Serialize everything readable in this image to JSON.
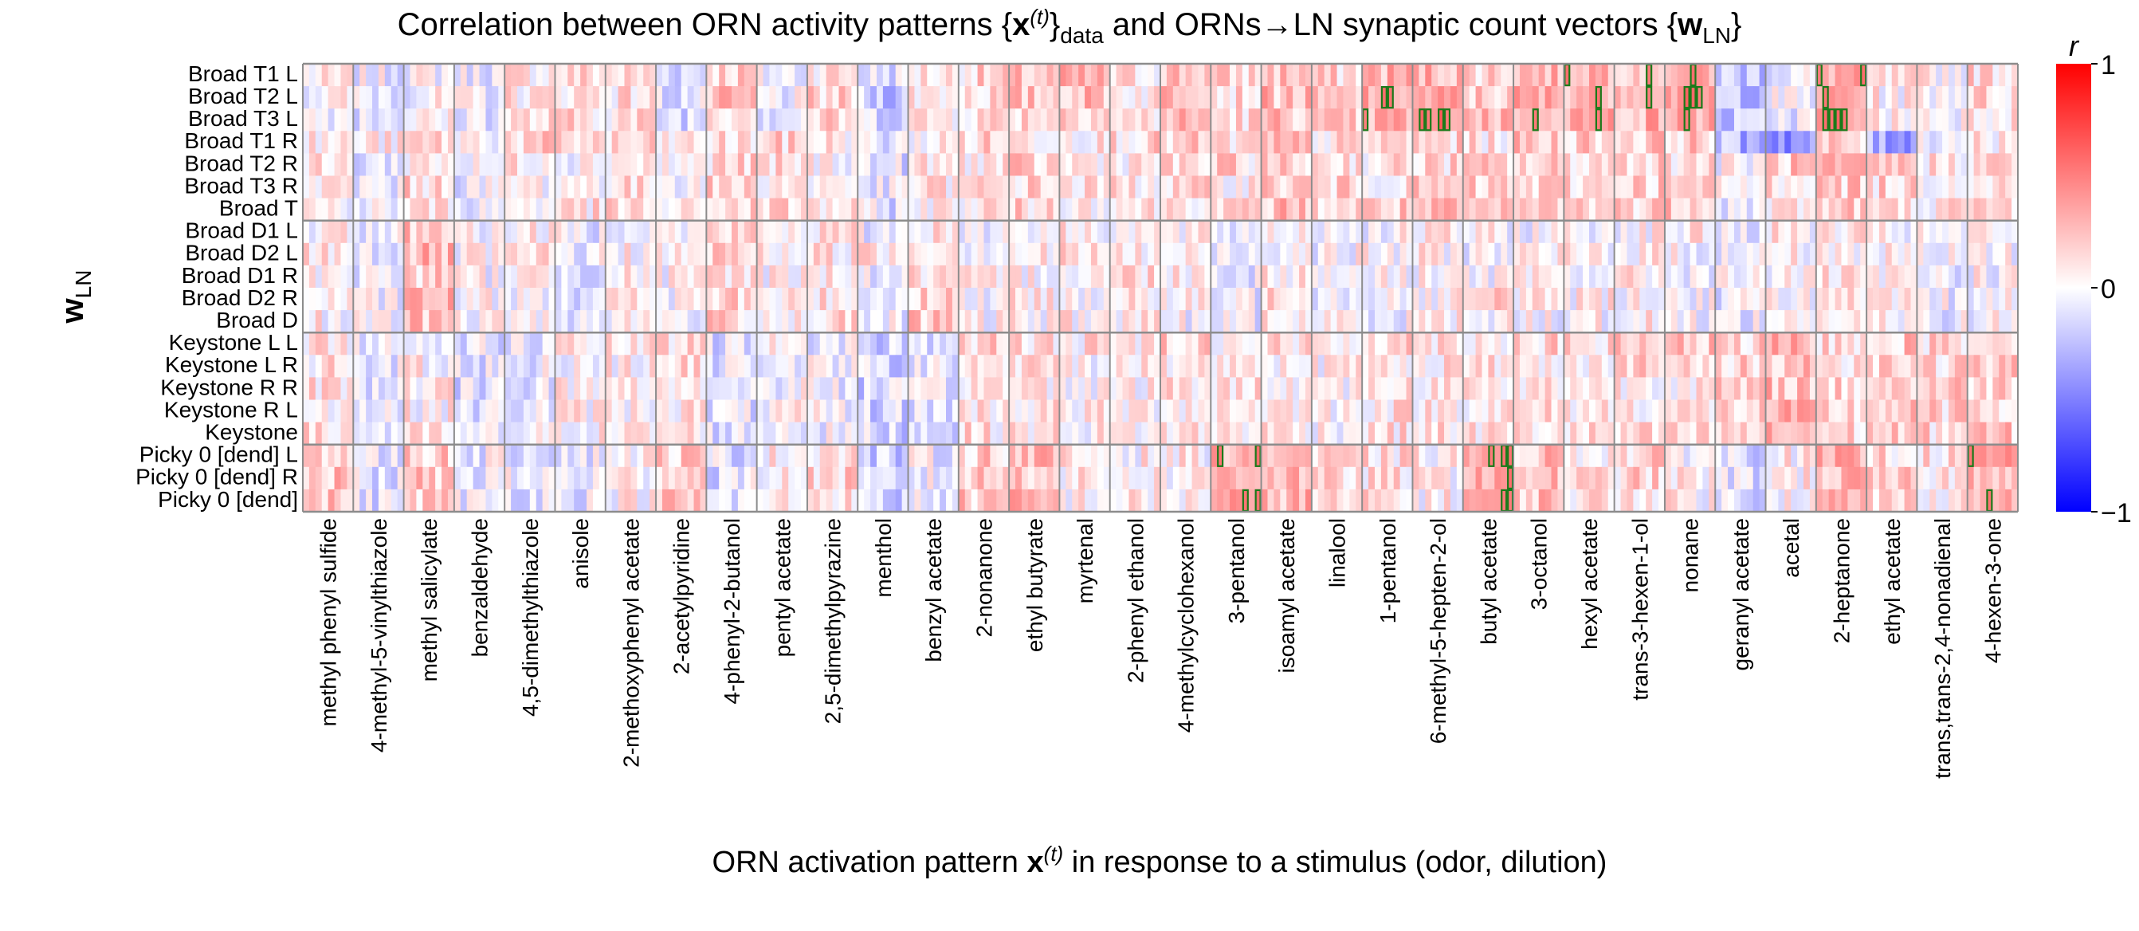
{
  "title_parts": {
    "lead": "Correlation between ORN activity patterns {",
    "x": "x",
    "sup": "(t)",
    "sub": "data",
    "mid": " and ORNs→LN synaptic count vectors {",
    "w": "w",
    "wsub": "LN",
    "tail": "}"
  },
  "ylabel": {
    "main": "w",
    "sub": "LN"
  },
  "xlabel": {
    "lead": "ORN activation pattern ",
    "x": "x",
    "sup": "(t)",
    "tail": " in response to a stimulus (odor, dilution)"
  },
  "colorbar": {
    "label": "r",
    "ticks": [
      "1",
      "0",
      "−1"
    ]
  },
  "chart_data": {
    "type": "heatmap",
    "colormap": "bwr",
    "vmin": -1,
    "vmax": 1,
    "dilutions_per_odor": 8,
    "rows": [
      "Broad T1 L",
      "Broad T2 L",
      "Broad T3 L",
      "Broad T1 R",
      "Broad T2 R",
      "Broad T3 R",
      "Broad T",
      "Broad D1 L",
      "Broad D2 L",
      "Broad D1 R",
      "Broad D2 R",
      "Broad D",
      "Keystone L L",
      "Keystone L R",
      "Keystone R R",
      "Keystone R L",
      "Keystone",
      "Picky 0 [dend] L",
      "Picky 0 [dend] R",
      "Picky 0 [dend]"
    ],
    "row_groups": [
      {
        "name": "Broad",
        "count": 7
      },
      {
        "name": "Broad D",
        "count": 5
      },
      {
        "name": "Keystone",
        "count": 5
      },
      {
        "name": "Picky 0",
        "count": 3
      }
    ],
    "odors": [
      "methyl phenyl sulfide",
      "4-methyl-5-vinylthiazole",
      "methyl salicylate",
      "benzaldehyde",
      "4,5-dimethylthiazole",
      "anisole",
      "2-methoxyphenyl acetate",
      "2-acetylpyridine",
      "4-phenyl-2-butanol",
      "pentyl acetate",
      "2,5-dimethylpyrazine",
      "menthol",
      "benzyl acetate",
      "2-nonanone",
      "ethyl butyrate",
      "myrtenal",
      "2-phenyl ethanol",
      "4-methylcyclohexanol",
      "3-pentanol",
      "isoamyl acetate",
      "linalool",
      "1-pentanol",
      "6-methyl-5-hepten-2-ol",
      "butyl acetate",
      "3-octanol",
      "hexyl acetate",
      "trans-3-hexen-1-ol",
      "nonane",
      "geranyl acetate",
      "acetal",
      "2-heptanone",
      "ethyl acetate",
      "trans,trans-2,4-nonadienal",
      "4-hexen-3-one"
    ],
    "odor_row_bias": [
      [
        0.02,
        -0.05,
        0.0,
        -0.04,
        0.1,
        0.14,
        0.12,
        -0.1,
        0.2,
        -0.05,
        0.14,
        -0.1,
        0.1,
        0.15,
        0.2,
        0.25,
        0.1,
        0.25,
        0.15,
        0.25,
        0.15,
        0.3,
        0.3,
        0.2,
        0.3,
        0.35,
        0.3,
        0.35,
        -0.2,
        -0.05,
        0.35,
        0.05,
        0.05,
        0.15
      ],
      [
        0.02,
        -0.05,
        0.0,
        -0.04,
        0.1,
        0.14,
        0.12,
        -0.1,
        0.2,
        -0.05,
        0.14,
        -0.2,
        0.1,
        0.15,
        0.2,
        0.25,
        0.1,
        0.35,
        0.15,
        0.25,
        0.15,
        0.35,
        0.3,
        0.2,
        0.3,
        0.35,
        0.4,
        0.4,
        -0.2,
        -0.05,
        0.35,
        0.05,
        0.05,
        0.15
      ],
      [
        0.02,
        -0.05,
        0.0,
        -0.04,
        0.1,
        0.14,
        0.12,
        -0.1,
        0.2,
        -0.05,
        0.14,
        -0.1,
        0.1,
        0.15,
        0.2,
        0.25,
        0.1,
        0.25,
        0.15,
        0.25,
        0.15,
        0.3,
        0.45,
        0.3,
        0.35,
        0.35,
        0.3,
        0.35,
        -0.25,
        -0.05,
        0.45,
        0.05,
        0.05,
        0.15
      ],
      [
        0.05,
        0.05,
        0.15,
        0.05,
        0.15,
        0.15,
        0.1,
        0.05,
        0.1,
        0.15,
        0.1,
        -0.1,
        0.05,
        0.15,
        0.1,
        0.1,
        0.15,
        0.15,
        0.1,
        0.2,
        0.1,
        0.15,
        0.15,
        0.1,
        0.2,
        0.2,
        0.2,
        0.2,
        -0.3,
        -0.4,
        0.15,
        -0.35,
        0.0,
        0.1
      ],
      [
        0.05,
        -0.1,
        0.1,
        -0.05,
        0.1,
        0.05,
        0.1,
        0.0,
        0.15,
        0.1,
        0.05,
        -0.1,
        0.05,
        0.1,
        0.15,
        0.1,
        0.1,
        0.1,
        0.15,
        0.15,
        0.15,
        0.1,
        0.15,
        0.15,
        0.15,
        0.15,
        0.2,
        0.15,
        0.0,
        0.2,
        0.2,
        0.2,
        0.1,
        0.15
      ],
      [
        0.05,
        -0.05,
        0.15,
        -0.05,
        0.05,
        0.05,
        0.1,
        0.05,
        0.15,
        0.1,
        0.05,
        -0.1,
        0.1,
        0.1,
        0.15,
        0.1,
        0.1,
        0.1,
        0.1,
        0.2,
        0.15,
        0.1,
        0.15,
        0.15,
        0.15,
        0.15,
        0.2,
        0.15,
        0.0,
        0.15,
        0.2,
        0.15,
        0.1,
        0.15
      ],
      [
        0.05,
        -0.05,
        0.1,
        -0.05,
        0.05,
        0.1,
        0.1,
        0.0,
        0.15,
        0.15,
        0.1,
        -0.1,
        0.05,
        0.1,
        0.15,
        0.1,
        0.1,
        0.15,
        0.1,
        0.25,
        0.15,
        0.2,
        0.2,
        0.15,
        0.2,
        0.2,
        0.2,
        0.25,
        -0.05,
        0.1,
        0.2,
        0.1,
        0.1,
        0.15
      ],
      [
        0.05,
        -0.05,
        0.25,
        0.0,
        0.05,
        -0.05,
        0.05,
        0.0,
        0.15,
        0.05,
        0.1,
        -0.05,
        0.1,
        0.0,
        0.05,
        0.05,
        0.05,
        0.0,
        -0.05,
        0.05,
        0.0,
        0.0,
        0.05,
        0.0,
        0.0,
        0.0,
        0.05,
        0.05,
        -0.05,
        0.05,
        0.05,
        0.0,
        -0.05,
        0.0
      ],
      [
        0.1,
        -0.05,
        0.25,
        0.0,
        0.05,
        -0.05,
        0.05,
        0.0,
        0.2,
        0.05,
        0.1,
        0.1,
        0.15,
        0.05,
        0.05,
        0.1,
        0.05,
        0.0,
        -0.05,
        0.05,
        0.0,
        0.0,
        0.05,
        0.0,
        0.0,
        0.05,
        0.05,
        0.0,
        -0.05,
        0.05,
        0.05,
        0.0,
        -0.05,
        0.0
      ],
      [
        0.05,
        -0.05,
        0.2,
        0.0,
        0.05,
        -0.05,
        0.05,
        0.0,
        0.15,
        0.05,
        0.1,
        -0.05,
        0.1,
        0.0,
        0.05,
        0.05,
        0.15,
        0.1,
        -0.05,
        0.1,
        0.0,
        0.0,
        0.05,
        0.0,
        0.0,
        0.0,
        0.05,
        0.0,
        -0.05,
        0.05,
        0.05,
        0.0,
        -0.05,
        0.0
      ],
      [
        0.05,
        -0.05,
        0.25,
        0.0,
        0.05,
        -0.05,
        0.05,
        0.0,
        0.15,
        0.05,
        0.1,
        -0.05,
        0.2,
        0.0,
        0.05,
        0.05,
        0.05,
        0.0,
        -0.05,
        0.2,
        0.0,
        0.0,
        0.05,
        0.15,
        0.1,
        0.05,
        0.05,
        0.0,
        -0.05,
        0.05,
        0.05,
        0.0,
        -0.05,
        0.0
      ],
      [
        0.05,
        -0.05,
        0.25,
        0.0,
        0.05,
        -0.05,
        0.05,
        0.0,
        0.15,
        0.05,
        0.1,
        -0.05,
        0.2,
        0.0,
        0.05,
        0.05,
        0.05,
        0.0,
        -0.05,
        0.05,
        0.0,
        0.0,
        0.05,
        0.05,
        0.0,
        0.0,
        0.05,
        0.0,
        -0.05,
        0.05,
        0.05,
        0.0,
        -0.05,
        0.0
      ],
      [
        0.1,
        -0.05,
        0.05,
        -0.1,
        -0.05,
        0.05,
        0.05,
        0.1,
        -0.1,
        0.0,
        -0.05,
        -0.15,
        -0.1,
        0.15,
        0.1,
        0.1,
        0.1,
        0.2,
        0.1,
        0.1,
        0.05,
        0.2,
        0.15,
        0.1,
        0.15,
        0.1,
        0.2,
        0.2,
        0.15,
        0.25,
        0.15,
        0.2,
        0.15,
        0.2
      ],
      [
        0.1,
        -0.05,
        0.05,
        -0.1,
        -0.05,
        0.05,
        0.05,
        0.1,
        -0.1,
        0.0,
        -0.05,
        -0.15,
        -0.1,
        0.1,
        0.1,
        0.05,
        0.05,
        0.1,
        0.1,
        0.1,
        0.05,
        0.1,
        0.1,
        0.1,
        0.1,
        0.1,
        0.15,
        0.1,
        0.15,
        0.25,
        0.15,
        0.2,
        0.15,
        0.2
      ],
      [
        0.1,
        -0.05,
        0.05,
        -0.1,
        -0.05,
        0.05,
        0.05,
        0.1,
        -0.1,
        0.0,
        -0.05,
        -0.15,
        -0.1,
        0.1,
        0.1,
        0.05,
        0.05,
        0.1,
        0.1,
        0.1,
        0.05,
        0.1,
        0.1,
        0.1,
        0.1,
        0.1,
        0.1,
        0.1,
        0.15,
        0.25,
        0.15,
        0.2,
        0.2,
        0.2
      ],
      [
        0.1,
        -0.05,
        0.05,
        -0.1,
        -0.05,
        0.05,
        0.05,
        0.1,
        -0.1,
        0.0,
        -0.05,
        -0.15,
        -0.1,
        0.1,
        0.1,
        0.05,
        0.05,
        0.1,
        0.1,
        0.1,
        0.05,
        0.1,
        0.1,
        0.1,
        0.1,
        0.1,
        0.1,
        0.1,
        0.15,
        0.25,
        0.15,
        0.2,
        0.15,
        0.2
      ],
      [
        0.1,
        -0.05,
        0.05,
        -0.1,
        -0.05,
        0.05,
        0.05,
        0.1,
        -0.1,
        0.0,
        -0.05,
        -0.15,
        -0.1,
        0.1,
        0.1,
        0.05,
        0.05,
        0.1,
        0.1,
        0.1,
        0.05,
        0.1,
        0.1,
        0.1,
        0.1,
        0.1,
        0.1,
        0.1,
        0.15,
        0.25,
        0.15,
        0.2,
        0.15,
        0.2
      ],
      [
        0.2,
        -0.1,
        0.2,
        -0.05,
        -0.05,
        -0.05,
        0.05,
        0.2,
        -0.1,
        0.05,
        0.15,
        -0.2,
        -0.05,
        0.2,
        0.25,
        0.05,
        0.05,
        0.05,
        0.35,
        0.3,
        0.1,
        0.1,
        0.05,
        0.35,
        0.25,
        0.1,
        0.15,
        0.05,
        -0.1,
        0.05,
        0.25,
        0.15,
        0.1,
        0.35
      ],
      [
        0.2,
        -0.1,
        0.2,
        -0.05,
        -0.05,
        -0.05,
        0.05,
        0.2,
        -0.1,
        0.05,
        0.15,
        -0.2,
        -0.05,
        0.2,
        0.25,
        0.05,
        0.05,
        0.05,
        0.35,
        0.3,
        0.1,
        0.1,
        0.05,
        0.35,
        0.25,
        0.1,
        0.15,
        0.05,
        -0.1,
        0.05,
        0.25,
        0.15,
        0.1,
        0.35
      ],
      [
        0.2,
        -0.1,
        0.2,
        -0.05,
        -0.05,
        -0.05,
        0.05,
        0.2,
        -0.1,
        0.05,
        0.15,
        -0.2,
        -0.05,
        0.2,
        0.25,
        0.05,
        0.05,
        0.05,
        0.35,
        0.3,
        0.1,
        0.1,
        0.05,
        0.35,
        0.25,
        0.1,
        0.15,
        0.05,
        -0.1,
        0.05,
        0.25,
        0.15,
        0.1,
        0.35
      ]
    ],
    "highlight_thresholds": {
      "green_outline": 0.5,
      "yellow_outline": 0.7
    }
  }
}
